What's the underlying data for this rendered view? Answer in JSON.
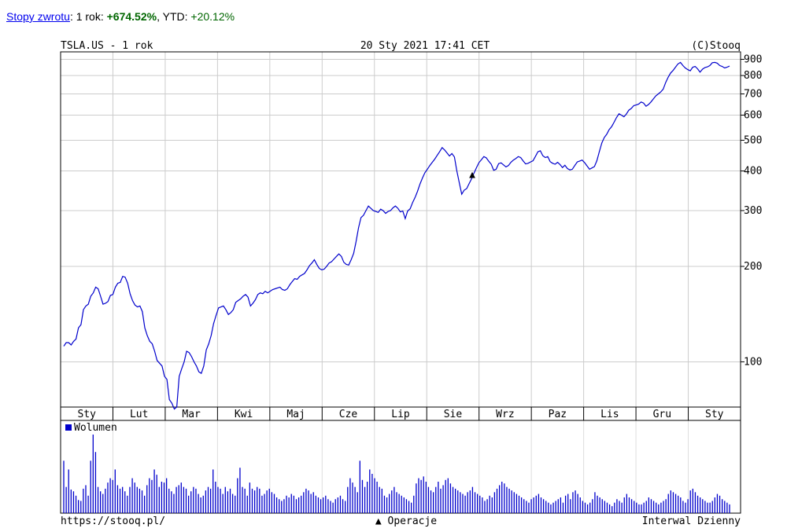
{
  "returns": {
    "link_label": "Stopy zwrotu",
    "sep": ":",
    "period1_label": " 1 rok: ",
    "period1_value": "+674.52%",
    "period2_label": ", YTD: ",
    "period2_value": "+20.12%"
  },
  "header": {
    "symbol": "TSLA.US - 1 rok",
    "datetime": "20 Sty 2021 17:41 CET",
    "copyright": "(C)Stooq"
  },
  "footer": {
    "url": "https://stooq.pl/",
    "operations": "▲ Operacje",
    "interval": "Interwal Dzienny"
  },
  "colors": {
    "line": "#0000cc",
    "grid": "#cccccc",
    "frame": "#000000"
  },
  "chart_data": {
    "type": "line",
    "scale": "log",
    "ylim": [
      72,
      950
    ],
    "yticks": [
      900,
      800,
      700,
      600,
      500,
      400,
      300,
      200,
      100
    ],
    "months": [
      "Sty",
      "Lut",
      "Mar",
      "Kwi",
      "Maj",
      "Cze",
      "Lip",
      "Sie",
      "Wrz",
      "Paz",
      "Lis",
      "Gru",
      "Sty"
    ],
    "series": [
      {
        "values": [
          112,
          115,
          115,
          113,
          116,
          118,
          128,
          131,
          146,
          150,
          152,
          161,
          165,
          172,
          170,
          161,
          152,
          153,
          155,
          162,
          163,
          172,
          177,
          178,
          186,
          185,
          177,
          164,
          156,
          151,
          149,
          150,
          144,
          128,
          121,
          116,
          114,
          108,
          101,
          99,
          97,
          90,
          88,
          76,
          74,
          71,
          72,
          90,
          95,
          100,
          108,
          107,
          104,
          100,
          97,
          93,
          92,
          97,
          109,
          114,
          121,
          132,
          140,
          148,
          149,
          150,
          146,
          141,
          143,
          146,
          154,
          156,
          158,
          161,
          163,
          160,
          150,
          153,
          157,
          163,
          165,
          164,
          167,
          165,
          167,
          169,
          170,
          171,
          172,
          169,
          168,
          170,
          175,
          179,
          183,
          182,
          186,
          188,
          190,
          195,
          201,
          205,
          210,
          203,
          197,
          195,
          196,
          200,
          205,
          207,
          211,
          215,
          219,
          215,
          206,
          203,
          202,
          210,
          220,
          240,
          265,
          285,
          290,
          300,
          310,
          305,
          300,
          298,
          296,
          303,
          300,
          294,
          298,
          300,
          306,
          310,
          305,
          297,
          299,
          283,
          299,
          304,
          318,
          330,
          345,
          364,
          380,
          395,
          405,
          416,
          426,
          436,
          448,
          460,
          474,
          466,
          456,
          446,
          454,
          443,
          400,
          367,
          338,
          348,
          352,
          365,
          378,
          394,
          410,
          425,
          434,
          444,
          440,
          429,
          420,
          402,
          405,
          422,
          424,
          418,
          412,
          416,
          426,
          433,
          438,
          444,
          441,
          430,
          421,
          423,
          427,
          431,
          445,
          460,
          463,
          447,
          441,
          444,
          428,
          423,
          420,
          426,
          419,
          410,
          417,
          407,
          403,
          405,
          416,
          427,
          430,
          433,
          425,
          415,
          405,
          409,
          413,
          431,
          460,
          490,
          510,
          522,
          540,
          552,
          570,
          590,
          606,
          600,
          593,
          605,
          622,
          630,
          643,
          646,
          650,
          660,
          655,
          640,
          648,
          660,
          675,
          690,
          700,
          710,
          725,
          760,
          790,
          815,
          830,
          850,
          870,
          880,
          860,
          845,
          835,
          828,
          850,
          855,
          840,
          820,
          838,
          848,
          852,
          860,
          878,
          880,
          875,
          860,
          855,
          845,
          850,
          857
        ]
      }
    ],
    "volume_legend": "Wolumen",
    "volume": [
      60,
      30,
      50,
      27,
      25,
      20,
      15,
      14,
      28,
      32,
      20,
      60,
      90,
      70,
      30,
      25,
      22,
      28,
      35,
      40,
      38,
      50,
      32,
      28,
      30,
      25,
      20,
      30,
      40,
      35,
      30,
      28,
      26,
      20,
      32,
      40,
      38,
      50,
      44,
      30,
      36,
      35,
      40,
      28,
      25,
      22,
      30,
      32,
      35,
      30,
      28,
      20,
      25,
      30,
      28,
      22,
      18,
      20,
      26,
      30,
      28,
      50,
      36,
      30,
      28,
      22,
      30,
      25,
      28,
      22,
      20,
      40,
      52,
      30,
      28,
      20,
      35,
      28,
      26,
      30,
      28,
      20,
      22,
      26,
      28,
      24,
      22,
      18,
      16,
      14,
      16,
      20,
      18,
      22,
      20,
      16,
      18,
      20,
      24,
      28,
      26,
      22,
      24,
      20,
      18,
      16,
      18,
      20,
      16,
      14,
      12,
      16,
      18,
      20,
      16,
      14,
      30,
      40,
      35,
      30,
      24,
      60,
      38,
      30,
      36,
      50,
      45,
      40,
      36,
      30,
      28,
      20,
      18,
      22,
      26,
      30,
      24,
      22,
      20,
      18,
      16,
      14,
      12,
      20,
      34,
      40,
      38,
      42,
      36,
      30,
      26,
      24,
      30,
      36,
      28,
      32,
      38,
      40,
      34,
      30,
      28,
      26,
      24,
      22,
      20,
      24,
      26,
      30,
      24,
      22,
      20,
      18,
      14,
      16,
      20,
      18,
      24,
      28,
      32,
      36,
      34,
      30,
      28,
      26,
      24,
      22,
      20,
      18,
      16,
      14,
      12,
      16,
      18,
      20,
      22,
      18,
      16,
      14,
      12,
      10,
      12,
      14,
      16,
      18,
      12,
      20,
      22,
      16,
      24,
      26,
      22,
      18,
      14,
      12,
      10,
      12,
      16,
      24,
      20,
      18,
      16,
      14,
      12,
      10,
      8,
      12,
      16,
      14,
      12,
      18,
      22,
      18,
      16,
      14,
      12,
      10,
      10,
      12,
      14,
      18,
      16,
      14,
      12,
      10,
      12,
      14,
      16,
      22,
      26,
      24,
      22,
      20,
      18,
      14,
      12,
      16,
      26,
      28,
      24,
      20,
      18,
      16,
      14,
      12,
      12,
      14,
      18,
      22,
      20,
      16,
      14,
      12,
      10
    ]
  }
}
